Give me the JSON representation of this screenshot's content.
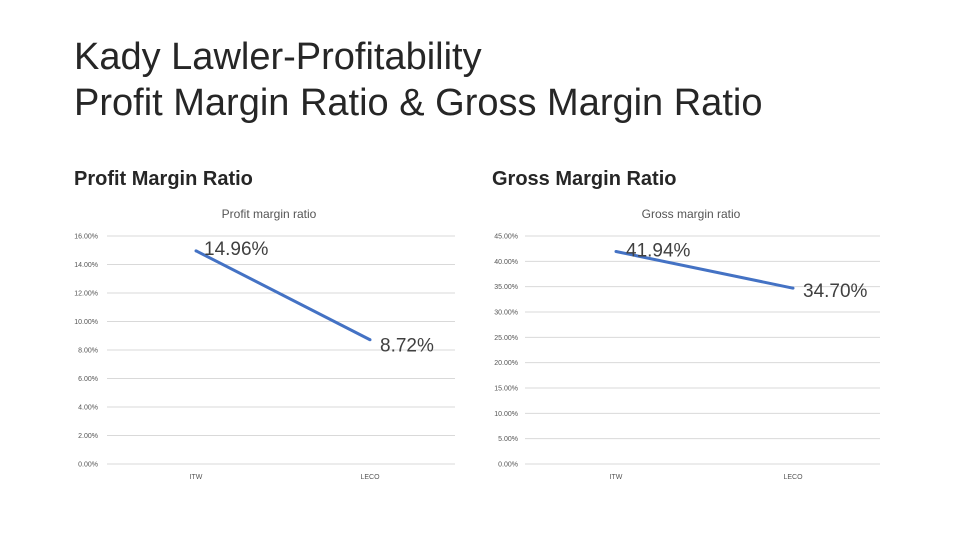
{
  "slide": {
    "title_line1": "Kady Lawler-Profitability",
    "title_line2": "Profit Margin Ratio & Gross Margin Ratio",
    "heading_left": "Profit Margin Ratio",
    "heading_right": "Gross Margin Ratio"
  },
  "colors": {
    "series": "#4472c4",
    "grid": "#d9d9d9",
    "text": "#555555"
  },
  "chart_data": [
    {
      "type": "line",
      "title": "Profit margin ratio",
      "categories": [
        "ITW",
        "LECO"
      ],
      "values": [
        14.96,
        8.72
      ],
      "data_labels": [
        "14.96%",
        "8.72%"
      ],
      "ylim": [
        0,
        16
      ],
      "yticks": [
        0,
        2,
        4,
        6,
        8,
        10,
        12,
        14,
        16
      ],
      "ytick_labels": [
        "0.00%",
        "2.00%",
        "4.00%",
        "6.00%",
        "8.00%",
        "10.00%",
        "12.00%",
        "14.00%",
        "16.00%"
      ],
      "grid": true
    },
    {
      "type": "line",
      "title": "Gross margin ratio",
      "categories": [
        "ITW",
        "LECO"
      ],
      "values": [
        41.94,
        34.7
      ],
      "data_labels": [
        "41.94%",
        "34.70%"
      ],
      "ylim": [
        0,
        45
      ],
      "yticks": [
        0,
        5,
        10,
        15,
        20,
        25,
        30,
        35,
        40,
        45
      ],
      "ytick_labels": [
        "0.00%",
        "5.00%",
        "10.00%",
        "15.00%",
        "20.00%",
        "25.00%",
        "30.00%",
        "35.00%",
        "40.00%",
        "45.00%"
      ],
      "grid": true
    }
  ]
}
